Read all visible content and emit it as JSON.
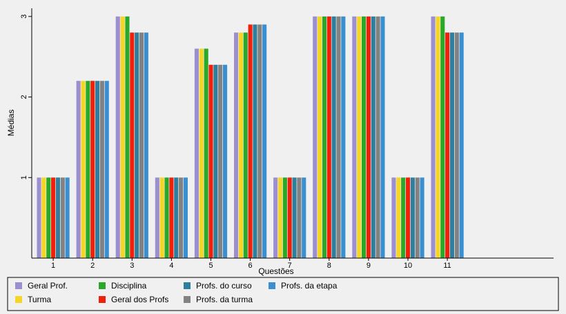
{
  "chart_data": {
    "type": "bar",
    "title": "",
    "xlabel": "Questões",
    "ylabel": "Médias",
    "categories": [
      "1",
      "2",
      "3",
      "4",
      "5",
      "6",
      "7",
      "8",
      "9",
      "10",
      "11"
    ],
    "yticks": [
      "1",
      "2",
      "3"
    ],
    "ylim": [
      0,
      3.05
    ],
    "grid": false,
    "legend_position": "bottom",
    "series": [
      {
        "name": "Geral Prof.",
        "color": "#9b8fd0",
        "values": [
          1,
          2.2,
          3,
          1,
          2.6,
          2.8,
          1,
          3,
          3,
          1,
          3
        ]
      },
      {
        "name": "Turma",
        "color": "#f5d525",
        "values": [
          1,
          2.2,
          3,
          1,
          2.6,
          2.8,
          1,
          3,
          3,
          1,
          3
        ]
      },
      {
        "name": "Disciplina",
        "color": "#2aa82a",
        "values": [
          1,
          2.2,
          3,
          1,
          2.6,
          2.8,
          1,
          3,
          3,
          1,
          3
        ]
      },
      {
        "name": "Geral dos Profs",
        "color": "#f0200a",
        "values": [
          1,
          2.2,
          2.8,
          1,
          2.4,
          2.9,
          1,
          3,
          3,
          1,
          2.8
        ]
      },
      {
        "name": "Profs. do curso",
        "color": "#2d7f9d",
        "values": [
          1,
          2.2,
          2.8,
          1,
          2.4,
          2.9,
          1,
          3,
          3,
          1,
          2.8
        ]
      },
      {
        "name": "Profs. da turma",
        "color": "#828282",
        "values": [
          1,
          2.2,
          2.8,
          1,
          2.4,
          2.9,
          1,
          3,
          3,
          1,
          2.8
        ]
      },
      {
        "name": "Profs. da etapa",
        "color": "#3a8fd0",
        "values": [
          1,
          2.2,
          2.8,
          1,
          2.4,
          2.9,
          1,
          3,
          3,
          1,
          2.8
        ]
      }
    ]
  }
}
